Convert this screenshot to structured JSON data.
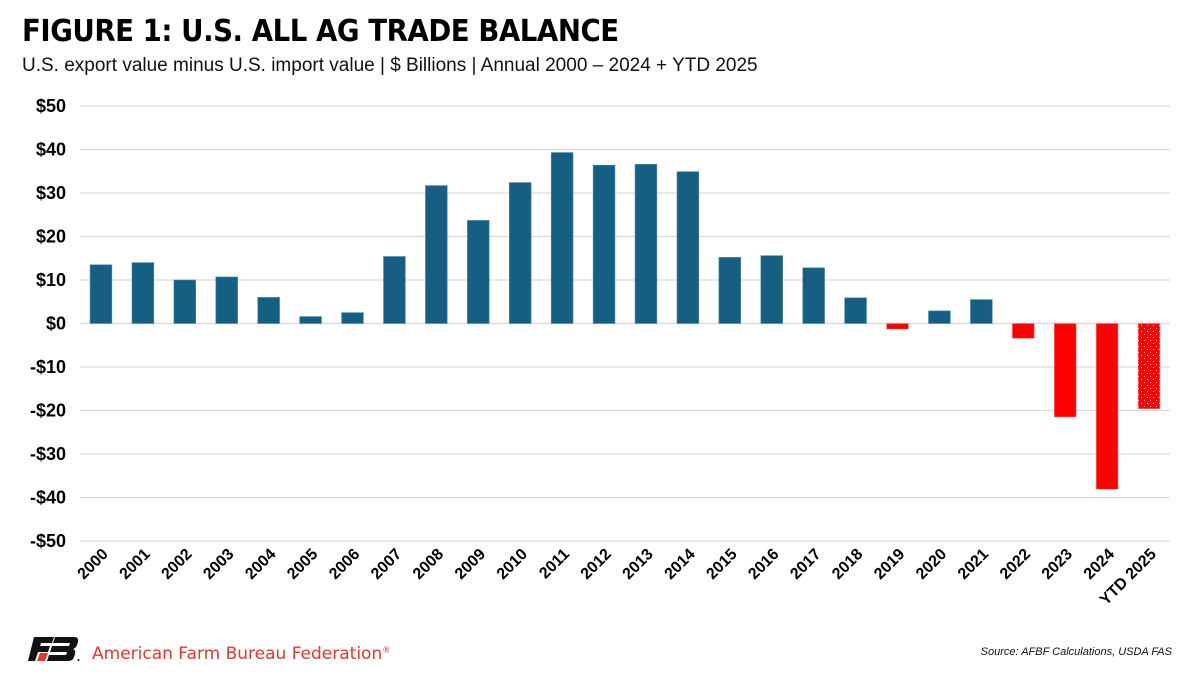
{
  "header": {
    "title": "FIGURE 1: U.S. ALL AG TRADE BALANCE",
    "subtitle": "U.S. export value minus U.S. import value | $ Billions | Annual 2000 – 2024 + YTD 2025"
  },
  "footer": {
    "organization": "American Farm Bureau Federation",
    "registered_mark": "®",
    "source": "Source: AFBF Calculations, USDA FAS",
    "logo_icon": "afbf-fb-logo-icon"
  },
  "colors": {
    "positive": "#175f82",
    "negative": "#ff0000",
    "gridline": "#d9d9d9",
    "brand_red": "#e8362d"
  },
  "chart_data": {
    "type": "bar",
    "title": "FIGURE 1: U.S. ALL AG TRADE BALANCE",
    "subtitle": "U.S. export value minus U.S. import value | $ Billions | Annual 2000 – 2024 + YTD 2025",
    "xlabel": "",
    "ylabel": "$ Billions",
    "ylim": [
      -50,
      50
    ],
    "yticks": [
      50,
      40,
      30,
      20,
      10,
      0,
      -10,
      -20,
      -30,
      -40,
      -50
    ],
    "ytick_labels": [
      "$50",
      "$40",
      "$30",
      "$20",
      "$10",
      "$0",
      "-$10",
      "-$20",
      "-$30",
      "-$40",
      "-$50"
    ],
    "grid": true,
    "legend": "none",
    "categories": [
      "2000",
      "2001",
      "2002",
      "2003",
      "2004",
      "2005",
      "2006",
      "2007",
      "2008",
      "2009",
      "2010",
      "2011",
      "2012",
      "2013",
      "2014",
      "2015",
      "2016",
      "2017",
      "2018",
      "2019",
      "2020",
      "2021",
      "2022",
      "2023",
      "2024",
      "YTD 2025"
    ],
    "values": [
      13.5,
      14.0,
      10.0,
      10.7,
      6.0,
      1.6,
      2.5,
      15.4,
      31.7,
      23.7,
      32.4,
      39.3,
      36.4,
      36.6,
      34.9,
      15.2,
      15.6,
      12.8,
      5.9,
      -1.3,
      2.9,
      5.5,
      -3.4,
      -21.5,
      -38.1,
      -19.6
    ],
    "annotations": [
      "Negative values shown in red",
      "YTD 2025 bar shown with dotted pattern (partial year)"
    ]
  }
}
